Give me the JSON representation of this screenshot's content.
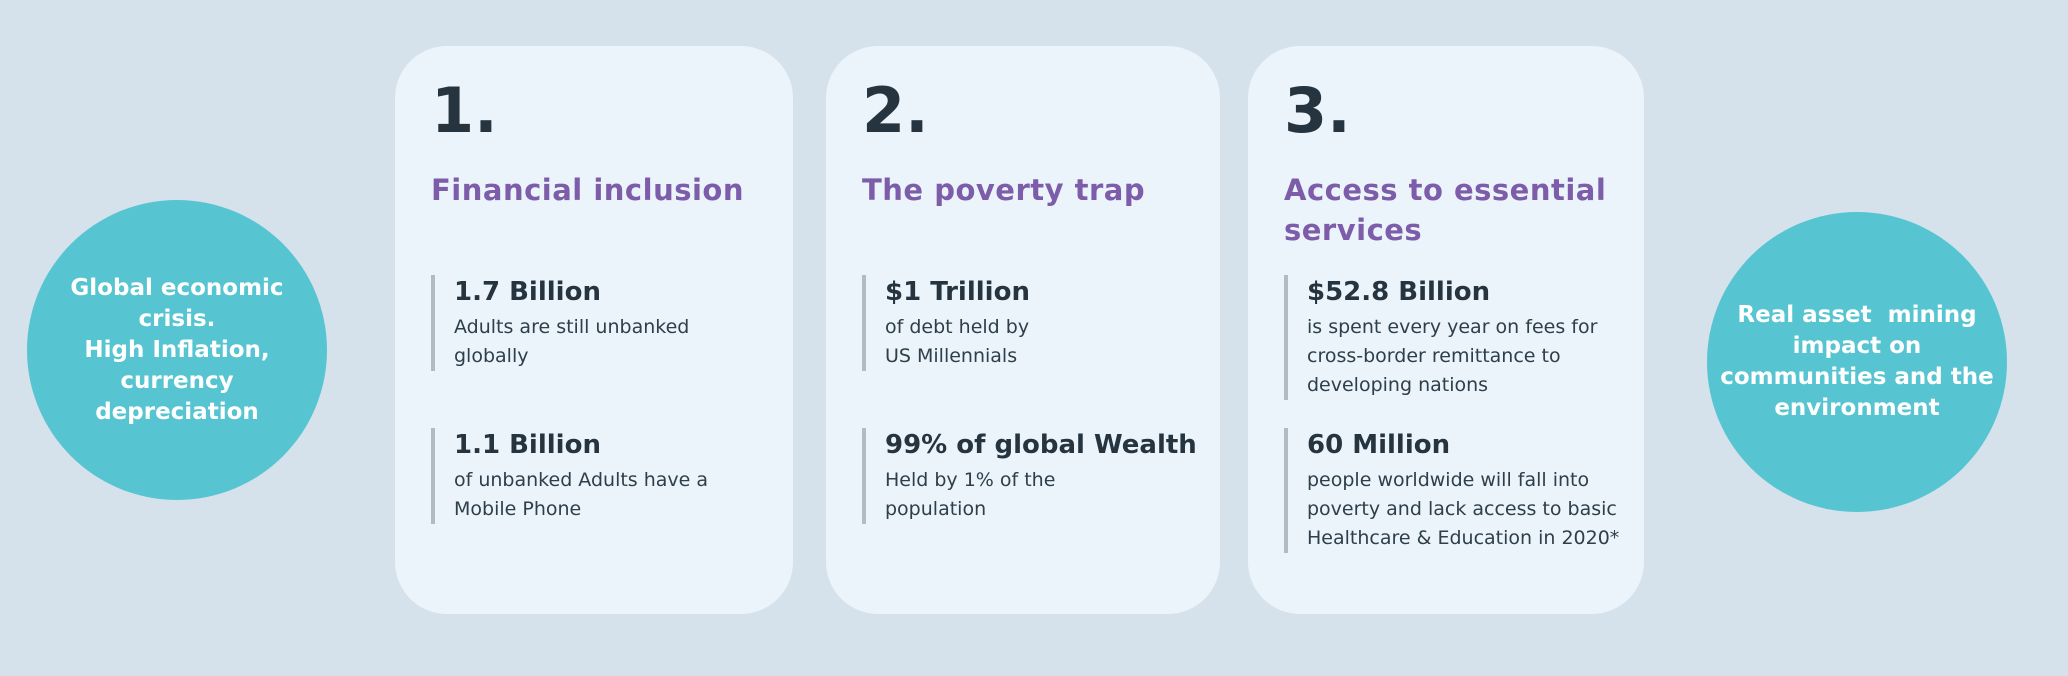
{
  "colors": {
    "page_bg": "#d5e2ec",
    "card_bg": "#eaf4fa",
    "circle_teal": "#57c5d1",
    "circle_text": "#ffffff",
    "title_purple": "#7d5ca9",
    "dark_navy": "#263440",
    "body_text": "#2e3e4a",
    "stat_bar_gray": "#b2bac2"
  },
  "left_circle": {
    "text": "Global economic\ncrisis.\nHigh Inflation,\ncurrency\ndepreciation"
  },
  "right_circle": {
    "text": "Real asset  mining\nimpact on\ncommunities and the\nenvironment"
  },
  "cards": [
    {
      "number": "1.",
      "title": "Financial inclusion",
      "stats": [
        {
          "value": "1.7 Billion",
          "description": "Adults are still unbanked\nglobally"
        },
        {
          "value": "1.1 Billion",
          "description": "of unbanked Adults have a\nMobile Phone"
        }
      ]
    },
    {
      "number": "2.",
      "title": "The poverty trap",
      "stats": [
        {
          "value": "$1 Trillion",
          "description": "of debt held by\nUS Millennials"
        },
        {
          "value": "99% of global Wealth",
          "description": "Held by 1% of the\npopulation"
        }
      ]
    },
    {
      "number": "3.",
      "title": "Access to essential\nservices",
      "stats": [
        {
          "value": "$52.8 Billion",
          "description": "is spent every year on fees for\ncross-border remittance to\ndeveloping nations"
        },
        {
          "value": "60 Million",
          "description": "people worldwide will fall into\npoverty and lack access to basic\nHealthcare & Education in 2020*"
        }
      ]
    }
  ]
}
